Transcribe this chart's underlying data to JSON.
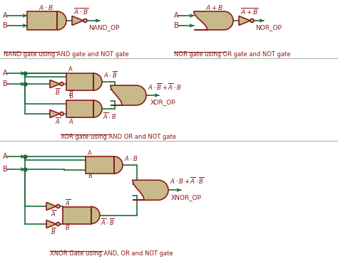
{
  "bg_color": "#ffffff",
  "wire_color": "#1a6b3c",
  "gate_fill": "#c8b98a",
  "gate_edge": "#8b1a1a",
  "text_color": "#8b1a1a",
  "nand_label": "NAND gate using AND gate and NOT gate",
  "nor_label": "NOR gate using OR gate and NOT gate",
  "xor_label": "XOR gate using AND OR and NOT gate",
  "xnor_label": "XNOR Gate using AND, OR and NOT gate",
  "fig_w": 4.74,
  "fig_h": 3.81,
  "dpi": 100
}
